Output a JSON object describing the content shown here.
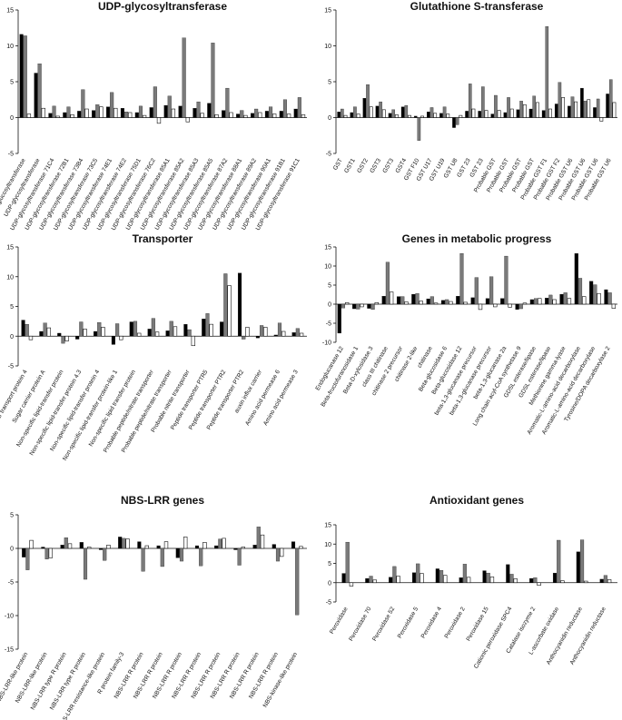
{
  "chart_data": [
    {
      "type": "bar",
      "title": "UDP-glycosyltransferase",
      "xlabel": "",
      "ylabel": "",
      "ylim": [
        -5,
        15
      ],
      "yticks": [
        -5,
        0,
        5,
        10,
        15
      ],
      "categories": [
        "UDP-glucosyltransferase",
        "UDP-glycosyltransferase",
        "UDP-glycosyltransferase 71C4",
        "UDP-glycosyltransferase 72B1",
        "UDP-glycosyltransferase 73B4",
        "UDP-glycosyltransferase 73C5",
        "UDP-glycosyltransferase 74E1",
        "UDP-glycosyltransferase 74E2",
        "UDP-glycosyltransferase 75D1",
        "UDP-glycosyltransferase 76C2",
        "UDP-glycosyltransferase 85A1",
        "UDP-glycosyltransferase 85A2",
        "UDP-glycosyltransferase 85A3",
        "UDP-glycosyltransferase 85A5",
        "UDP-glycosyltransferase 87A2",
        "UDP-glycosyltransferase 88A1",
        "UDP-glycosyltransferase 89A2",
        "UDP-glycosyltransferase 90A1",
        "UDP-glycosyltransferase 91B1",
        "UDP-glycosyltransferase 91C1"
      ],
      "series": [
        {
          "color": "#000000",
          "values": [
            11.6,
            6.2,
            0.6,
            0.7,
            0.9,
            1.0,
            1.5,
            1.3,
            0.7,
            1.4,
            1.7,
            1.6,
            1.3,
            2.0,
            1.0,
            0.5,
            0.6,
            0.9,
            0.9,
            1.2
          ]
        },
        {
          "color": "#7a7a7a",
          "values": [
            11.4,
            7.5,
            1.6,
            1.5,
            3.9,
            1.8,
            3.5,
            0.8,
            1.6,
            4.3,
            3.0,
            11.1,
            2.2,
            10.4,
            4.1,
            1.0,
            1.2,
            1.5,
            2.5,
            2.8
          ]
        },
        {
          "color": "#ffffff",
          "values": [
            0.5,
            1.3,
            0.2,
            0.4,
            1.2,
            1.5,
            1.3,
            0.7,
            0.3,
            -0.8,
            1.2,
            -0.6,
            0.6,
            0.4,
            0.7,
            0.3,
            0.7,
            0.5,
            0.5,
            0.4
          ]
        }
      ]
    },
    {
      "type": "bar",
      "title": "Glutathione S-transferase",
      "xlabel": "",
      "ylabel": "",
      "ylim": [
        -5,
        15
      ],
      "yticks": [
        -5,
        0,
        5,
        10,
        15
      ],
      "categories": [
        "GST",
        "GST1",
        "GST2",
        "GST3",
        "GST3",
        "GST4",
        "GST F10",
        "GST U17",
        "GST U19",
        "GST U8",
        "GST 23",
        "GST 23",
        "Probable GST",
        "Probable GST",
        "Probable GST",
        "Probable GST",
        "Probable GST F1",
        "Probable GST F2",
        "Probable GST U6",
        "Probable GST U6",
        "Probable GST U6",
        "Probable GST U6"
      ],
      "series": [
        {
          "color": "#000000",
          "values": [
            0.8,
            0.7,
            2.7,
            1.6,
            0.6,
            1.5,
            0.2,
            0.8,
            0.6,
            -1.4,
            0.9,
            0.9,
            0.5,
            0.7,
            1.1,
            1.2,
            1.0,
            1.9,
            1.6,
            4.1,
            1.4,
            3.3
          ]
        },
        {
          "color": "#7a7a7a",
          "values": [
            1.2,
            1.5,
            4.6,
            2.2,
            1.1,
            1.7,
            -3.2,
            1.4,
            1.5,
            -1.0,
            4.7,
            4.3,
            3.1,
            2.8,
            2.3,
            3.0,
            12.7,
            4.9,
            2.9,
            2.3,
            2.6,
            5.3
          ]
        },
        {
          "color": "#ffffff",
          "values": [
            0.3,
            0.5,
            1.5,
            1.1,
            0.4,
            0.3,
            0.2,
            0.6,
            0.5,
            0.3,
            1.2,
            1.0,
            1.0,
            1.2,
            1.8,
            2.1,
            1.2,
            2.8,
            2.2,
            2.5,
            -0.5,
            2.1
          ]
        }
      ]
    },
    {
      "type": "bar",
      "title": "Transporter",
      "xlabel": "",
      "ylabel": "",
      "ylim": [
        -5,
        15
      ],
      "yticks": [
        -5,
        0,
        5,
        10,
        15
      ],
      "categories": [
        "Sugar transport protein 4",
        "Sugar carrier protein A",
        "Non-specific lipid-transfer protein",
        "Non-specific lipid-transfer protein 4.3",
        "Non-specific lipid-transfer protein 4",
        "Non-specific lipid-transfer protein-like 1",
        "Non-specific lipid transfer protein",
        "Probable peptide/nitrate transporter",
        "Probable peptide/nitrate transporter",
        "Probable nitrite transporter",
        "Peptide transporter PTR5",
        "Peptide transporter PTR2",
        "Peptide transporter PTR2",
        "auxin influx carrier",
        "Amino acid permease 6",
        "Amino acid permease 3"
      ],
      "series": [
        {
          "color": "#000000",
          "values": [
            2.7,
            0.8,
            0.5,
            -0.5,
            0.8,
            -1.4,
            2.4,
            1.2,
            0.9,
            2.0,
            2.9,
            2.4,
            10.6,
            -0.3,
            0.2,
            0.6
          ]
        },
        {
          "color": "#7a7a7a",
          "values": [
            2.0,
            2.2,
            -1.2,
            2.4,
            2.3,
            2.1,
            2.5,
            3.0,
            2.5,
            1.1,
            3.8,
            10.5,
            -0.5,
            1.8,
            2.2,
            1.3
          ]
        },
        {
          "color": "#ffffff",
          "values": [
            -0.6,
            1.4,
            -0.8,
            1.2,
            1.5,
            -0.6,
            0.5,
            0.7,
            1.6,
            -1.6,
            2.0,
            8.5,
            1.5,
            1.5,
            0.8,
            0.5
          ]
        }
      ]
    },
    {
      "type": "bar",
      "title": "Genes in metabolic progress",
      "xlabel": "",
      "ylabel": "",
      "ylim": [
        -10,
        15
      ],
      "yticks": [
        -10,
        -5,
        0,
        5,
        10,
        15
      ],
      "categories": [
        "Endoglucanase 12",
        "Beta-fructofuranosidase 1",
        "Beta-D-xylosidase 3",
        "class III chitinase",
        "chitinase 2 precursor",
        "chitinase 2-like",
        "chitinase",
        "Beta-glucosidase 6",
        "Beta-glucosidase 12",
        "beta-1,3-glucanase precursor",
        "beta-1,3-glucanase precursor",
        "beta-1,3-glucanase 2a",
        "Long chain acyl-CoA synthetase 9",
        "GDSL esterase/lipase",
        "GDSL esterase/lipase",
        "Methionine gamma-lyase",
        "Aromatic-L-amino-acid decarboxylase",
        "Aromatic-L-amino-acid decarboxylase",
        "Tyrosine/DOPA decarboxylase 2"
      ],
      "series": [
        {
          "color": "#000000",
          "values": [
            -7.6,
            -1.2,
            -1.1,
            2.1,
            2.0,
            2.6,
            1.4,
            1.0,
            2.1,
            1.7,
            1.5,
            1.5,
            -1.4,
            1.2,
            1.6,
            2.6,
            13.3,
            6.0,
            3.8
          ]
        },
        {
          "color": "#7a7a7a",
          "values": [
            -1.0,
            -1.3,
            -1.4,
            11.0,
            2.0,
            2.8,
            2.0,
            1.2,
            13.3,
            7.0,
            7.2,
            12.6,
            -1.2,
            1.5,
            2.4,
            3.0,
            6.8,
            5.1,
            3.0
          ]
        },
        {
          "color": "#ffffff",
          "values": [
            0.4,
            -0.7,
            0.4,
            3.2,
            0.6,
            0.8,
            0.3,
            0.7,
            0.5,
            -1.4,
            -0.7,
            -0.8,
            0.3,
            1.5,
            1.2,
            1.5,
            2.0,
            2.8,
            -1.1
          ]
        }
      ]
    },
    {
      "type": "bar",
      "title": "NBS-LRR genes",
      "xlabel": "",
      "ylabel": "",
      "ylim": [
        -15,
        5
      ],
      "yticks": [
        -15,
        -10,
        -5,
        0,
        5
      ],
      "categories": [
        "NBS-LRR-like protein",
        "NBS-LRR-like protein",
        "NBS-LRR type R protein",
        "NBS-LRR type R protein",
        "NBS-LRR resistance-like protein",
        "R protein family-3",
        "NBS-LRR R protein",
        "NBS-LRR R protein",
        "NBS-LRR R protein",
        "NBS-LRR R protein",
        "NBS-LRR R protein",
        "NBS-LRR R protein",
        "NBS-LRR R protein",
        "NBS-LRR R protein",
        "NBS-kinase-like protein"
      ],
      "series": [
        {
          "color": "#000000",
          "values": [
            -1.3,
            0.2,
            0.5,
            0.9,
            -0.2,
            1.7,
            1.0,
            0.4,
            -1.4,
            0.4,
            0.4,
            -0.2,
            0.5,
            0.6,
            1.0
          ]
        },
        {
          "color": "#7a7a7a",
          "values": [
            -3.2,
            -1.6,
            1.6,
            -4.6,
            -1.8,
            1.5,
            -3.4,
            -2.7,
            -1.9,
            -2.6,
            1.4,
            -2.5,
            3.2,
            -1.9,
            -9.9
          ]
        },
        {
          "color": "#ffffff",
          "values": [
            1.2,
            -1.4,
            0.7,
            0.2,
            0.5,
            1.4,
            0.4,
            1.0,
            1.7,
            0.9,
            1.5,
            0.2,
            2.0,
            -1.2,
            0.3
          ]
        }
      ]
    },
    {
      "type": "bar",
      "title": "Antioxidant genes",
      "xlabel": "",
      "ylabel": "",
      "ylim": [
        -5,
        15
      ],
      "yticks": [
        -5,
        0,
        5,
        10,
        15
      ],
      "categories": [
        "Peroxidase",
        "Peroxidase 70",
        "Peroxidase 52",
        "Peroxidase 5",
        "Peroxidase 4",
        "Peroxidase 2",
        "Peroxidase 15",
        "Cationic peroxidase SPC4",
        "Catalase isozyme 2",
        "L-ascorbate oxidase",
        "Anthocyanidin reductase",
        "Anthocyanidin reductase"
      ],
      "series": [
        {
          "color": "#000000",
          "values": [
            2.4,
            1.1,
            1.4,
            2.6,
            3.6,
            1.3,
            3.1,
            4.7,
            1.1,
            2.5,
            8.0,
            0.9
          ]
        },
        {
          "color": "#7a7a7a",
          "values": [
            10.5,
            1.7,
            4.2,
            4.9,
            3.2,
            4.8,
            2.5,
            2.2,
            1.3,
            11.0,
            11.1,
            1.9
          ]
        },
        {
          "color": "#ffffff",
          "values": [
            -0.9,
            0.7,
            1.7,
            2.4,
            1.9,
            1.4,
            1.5,
            1.0,
            -0.7,
            0.5,
            0.4,
            0.8
          ]
        }
      ]
    }
  ]
}
